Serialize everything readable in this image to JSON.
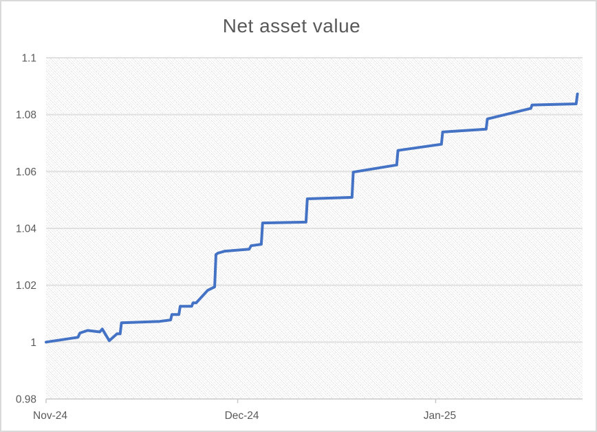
{
  "chart_data": {
    "type": "line",
    "title": "Net asset value",
    "grid": true,
    "legend": "none",
    "plot_background": "light-diagonal-hatch",
    "x_axis": {
      "unit": "days-from-2024-11-01",
      "range": [
        0,
        84
      ],
      "tick_days": [
        0,
        30,
        61
      ],
      "tick_labels": [
        "Nov-24",
        "Dec-24",
        "Jan-25"
      ]
    },
    "y_axis": {
      "range": [
        0.98,
        1.1
      ],
      "tick_values": [
        0.98,
        1.0,
        1.02,
        1.04,
        1.06,
        1.08,
        1.1
      ],
      "tick_labels": [
        "0.98",
        "1",
        "1.02",
        "1.04",
        "1.06",
        "1.08",
        "1.1"
      ]
    },
    "series": [
      {
        "name": "Net asset value",
        "color": "#4472C4",
        "points": [
          [
            0,
            1.0
          ],
          [
            5.0,
            1.0017
          ],
          [
            5.3,
            1.0032
          ],
          [
            6.5,
            1.0041
          ],
          [
            8.4,
            1.0036
          ],
          [
            8.8,
            1.0046
          ],
          [
            9.9,
            1.0005
          ],
          [
            11.1,
            1.0029
          ],
          [
            11.6,
            1.0029
          ],
          [
            11.8,
            1.0068
          ],
          [
            17.8,
            1.0073
          ],
          [
            19.5,
            1.0078
          ],
          [
            19.7,
            1.0097
          ],
          [
            20.8,
            1.0097
          ],
          [
            21.0,
            1.0126
          ],
          [
            22.8,
            1.0126
          ],
          [
            23.0,
            1.0138
          ],
          [
            23.5,
            1.0138
          ],
          [
            25.3,
            1.0182
          ],
          [
            26.4,
            1.0194
          ],
          [
            26.6,
            1.0308
          ],
          [
            26.9,
            1.0313
          ],
          [
            28.0,
            1.032
          ],
          [
            31.8,
            1.0327
          ],
          [
            32.1,
            1.0339
          ],
          [
            33.7,
            1.0344
          ],
          [
            33.9,
            1.0419
          ],
          [
            40.7,
            1.0422
          ],
          [
            40.9,
            1.0504
          ],
          [
            47.9,
            1.0509
          ],
          [
            48.1,
            1.0598
          ],
          [
            54.9,
            1.0623
          ],
          [
            55.1,
            1.0674
          ],
          [
            61.9,
            1.0696
          ],
          [
            62.1,
            1.0739
          ],
          [
            68.9,
            1.0749
          ],
          [
            69.1,
            1.0785
          ],
          [
            75.9,
            1.0822
          ],
          [
            76.1,
            1.0834
          ],
          [
            83.0,
            1.0838
          ],
          [
            83.2,
            1.0873
          ]
        ]
      }
    ]
  },
  "colors": {
    "line": "#4472C4",
    "title_text": "#595959",
    "axis_text": "#595959",
    "gridline": "#e0e0e0",
    "axis_line": "#c8c8c8",
    "hatch": "#d9d9d9",
    "chart_border": "#d9d9d9",
    "background": "#ffffff"
  }
}
